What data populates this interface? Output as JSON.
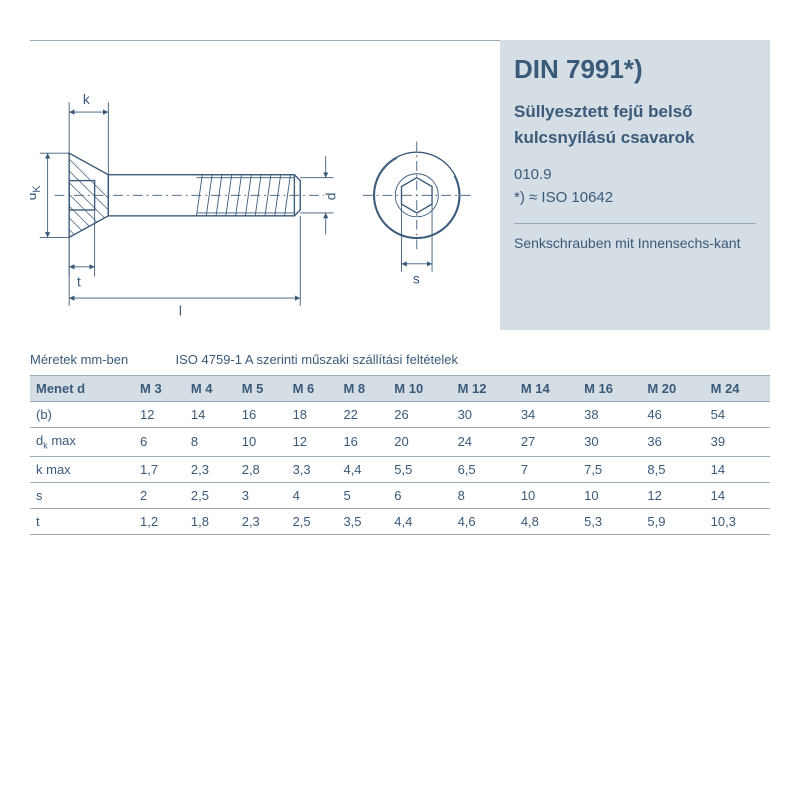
{
  "info": {
    "title": "DIN 7991*)",
    "subtitle1": "Süllyesztett fejű belső",
    "subtitle2": "kulcsnyílású csavarok",
    "code1": "010.9",
    "code2": "*) ≈ ISO 10642",
    "german": "Senkschrauben mit Innensechs-kant"
  },
  "caption": {
    "left": "Méretek mm-ben",
    "right": "ISO 4759-1 A szerinti műszaki szállítási feltételek"
  },
  "diagram_labels": {
    "k": "k",
    "dk": "d",
    "dk_sub": "K",
    "t": "t",
    "l": "l",
    "d": "d",
    "s": "s"
  },
  "table": {
    "header": "Menet d",
    "columns": [
      "M 3",
      "M 4",
      "M 5",
      "M 6",
      "M 8",
      "M 10",
      "M 12",
      "M 14",
      "M 16",
      "M 20",
      "M 24"
    ],
    "rows": [
      {
        "label_html": "(b)",
        "values": [
          "12",
          "14",
          "16",
          "18",
          "22",
          "26",
          "30",
          "34",
          "38",
          "46",
          "54"
        ]
      },
      {
        "label_html": "d<sub>k</sub> max",
        "values": [
          "6",
          "8",
          "10",
          "12",
          "16",
          "20",
          "24",
          "27",
          "30",
          "36",
          "39"
        ]
      },
      {
        "label_html": "k max",
        "values": [
          "1,7",
          "2,3",
          "2,8",
          "3,3",
          "4,4",
          "5,5",
          "6,5",
          "7",
          "7,5",
          "8,5",
          "14"
        ]
      },
      {
        "label_html": "s",
        "values": [
          "2",
          "2,5",
          "3",
          "4",
          "5",
          "6",
          "8",
          "10",
          "10",
          "12",
          "14"
        ]
      },
      {
        "label_html": "t",
        "values": [
          "1,2",
          "1,8",
          "2,3",
          "2,5",
          "3,5",
          "4,4",
          "4,6",
          "4,8",
          "5,3",
          "5,9",
          "10,3"
        ]
      }
    ]
  },
  "style": {
    "panel_bg": "#d5dde5",
    "line_color": "#3a5a7a",
    "text_color": "#3a5a7a",
    "border_color": "#9aaabb"
  }
}
